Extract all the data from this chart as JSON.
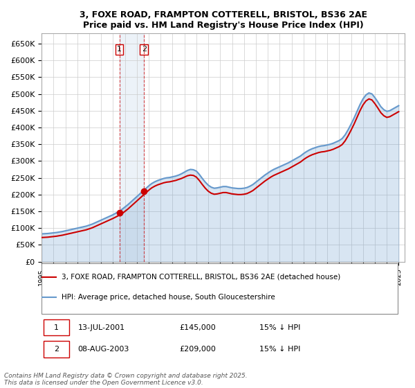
{
  "title": "3, FOXE ROAD, FRAMPTON COTTERELL, BRISTOL, BS36 2AE",
  "subtitle": "Price paid vs. HM Land Registry's House Price Index (HPI)",
  "ylabel": "",
  "xlim_start": 1995,
  "xlim_end": 2025.5,
  "ylim": [
    0,
    680000
  ],
  "yticks": [
    0,
    50000,
    100000,
    150000,
    200000,
    250000,
    300000,
    350000,
    400000,
    450000,
    500000,
    550000,
    600000,
    650000
  ],
  "ytick_labels": [
    "£0",
    "£50K",
    "£100K",
    "£150K",
    "£200K",
    "£250K",
    "£300K",
    "£350K",
    "£400K",
    "£450K",
    "£500K",
    "£550K",
    "£600K",
    "£650K"
  ],
  "xticks": [
    1995,
    1996,
    1997,
    1998,
    1999,
    2000,
    2001,
    2002,
    2003,
    2004,
    2005,
    2006,
    2007,
    2008,
    2009,
    2010,
    2011,
    2012,
    2013,
    2014,
    2015,
    2016,
    2017,
    2018,
    2019,
    2020,
    2021,
    2022,
    2023,
    2024,
    2025
  ],
  "sale1_x": 2001.53,
  "sale1_y": 145000,
  "sale1_label": "1",
  "sale2_x": 2003.6,
  "sale2_y": 209000,
  "sale2_label": "2",
  "sale_color": "#cc0000",
  "hpi_color": "#6699cc",
  "vline_color": "#cc0000",
  "grid_color": "#cccccc",
  "background_color": "#ffffff",
  "legend_label_red": "3, FOXE ROAD, FRAMPTON COTTERELL, BRISTOL, BS36 2AE (detached house)",
  "legend_label_blue": "HPI: Average price, detached house, South Gloucestershire",
  "annotation1": "1    13-JUL-2001    £145,000    15% ↓ HPI",
  "annotation2": "2    08-AUG-2003    £209,000    15% ↓ HPI",
  "footnote": "Contains HM Land Registry data © Crown copyright and database right 2025.\nThis data is licensed under the Open Government Licence v3.0.",
  "hpi_data_x": [
    1995,
    1995.25,
    1995.5,
    1995.75,
    1996,
    1996.25,
    1996.5,
    1996.75,
    1997,
    1997.25,
    1997.5,
    1997.75,
    1998,
    1998.25,
    1998.5,
    1998.75,
    1999,
    1999.25,
    1999.5,
    1999.75,
    2000,
    2000.25,
    2000.5,
    2000.75,
    2001,
    2001.25,
    2001.5,
    2001.75,
    2002,
    2002.25,
    2002.5,
    2002.75,
    2003,
    2003.25,
    2003.5,
    2003.75,
    2004,
    2004.25,
    2004.5,
    2004.75,
    2005,
    2005.25,
    2005.5,
    2005.75,
    2006,
    2006.25,
    2006.5,
    2006.75,
    2007,
    2007.25,
    2007.5,
    2007.75,
    2008,
    2008.25,
    2008.5,
    2008.75,
    2009,
    2009.25,
    2009.5,
    2009.75,
    2010,
    2010.25,
    2010.5,
    2010.75,
    2011,
    2011.25,
    2011.5,
    2011.75,
    2012,
    2012.25,
    2012.5,
    2012.75,
    2013,
    2013.25,
    2013.5,
    2013.75,
    2014,
    2014.25,
    2014.5,
    2014.75,
    2015,
    2015.25,
    2015.5,
    2015.75,
    2016,
    2016.25,
    2016.5,
    2016.75,
    2017,
    2017.25,
    2017.5,
    2017.75,
    2018,
    2018.25,
    2018.5,
    2018.75,
    2019,
    2019.25,
    2019.5,
    2019.75,
    2020,
    2020.25,
    2020.5,
    2020.75,
    2021,
    2021.25,
    2021.5,
    2021.75,
    2022,
    2022.25,
    2022.5,
    2022.75,
    2023,
    2023.25,
    2023.5,
    2023.75,
    2024,
    2024.25,
    2024.5,
    2024.75,
    2025
  ],
  "hpi_data_y": [
    83000,
    83500,
    84000,
    85000,
    86000,
    87000,
    88500,
    90000,
    92000,
    94000,
    96000,
    98000,
    100000,
    102000,
    104000,
    106000,
    109000,
    112000,
    116000,
    120000,
    124000,
    128000,
    132000,
    136000,
    140000,
    145000,
    150000,
    156000,
    163000,
    170000,
    178000,
    186000,
    194000,
    202000,
    210000,
    218000,
    226000,
    233000,
    238000,
    242000,
    245000,
    248000,
    250000,
    251000,
    253000,
    255000,
    258000,
    262000,
    267000,
    272000,
    275000,
    274000,
    270000,
    260000,
    248000,
    237000,
    228000,
    222000,
    219000,
    220000,
    222000,
    224000,
    224000,
    222000,
    220000,
    219000,
    218000,
    218000,
    219000,
    221000,
    225000,
    230000,
    237000,
    244000,
    251000,
    258000,
    264000,
    270000,
    275000,
    279000,
    283000,
    287000,
    291000,
    295000,
    300000,
    305000,
    310000,
    315000,
    322000,
    328000,
    333000,
    337000,
    340000,
    343000,
    345000,
    346000,
    348000,
    350000,
    353000,
    357000,
    361000,
    367000,
    378000,
    393000,
    410000,
    428000,
    448000,
    468000,
    485000,
    497000,
    503000,
    500000,
    489000,
    476000,
    462000,
    453000,
    448000,
    450000,
    455000,
    460000,
    465000
  ],
  "price_data_x": [
    1995,
    1995.25,
    1995.5,
    1995.75,
    1996,
    1996.25,
    1996.5,
    1996.75,
    1997,
    1997.25,
    1997.5,
    1997.75,
    1998,
    1998.25,
    1998.5,
    1998.75,
    1999,
    1999.25,
    1999.5,
    1999.75,
    2000,
    2000.25,
    2000.5,
    2000.75,
    2001,
    2001.25,
    2001.5,
    2001.75,
    2002,
    2002.25,
    2002.5,
    2002.75,
    2003,
    2003.25,
    2003.5,
    2003.75,
    2004,
    2004.25,
    2004.5,
    2004.75,
    2005,
    2005.25,
    2005.5,
    2005.75,
    2006,
    2006.25,
    2006.5,
    2006.75,
    2007,
    2007.25,
    2007.5,
    2007.75,
    2008,
    2008.25,
    2008.5,
    2008.75,
    2009,
    2009.25,
    2009.5,
    2009.75,
    2010,
    2010.25,
    2010.5,
    2010.75,
    2011,
    2011.25,
    2011.5,
    2011.75,
    2012,
    2012.25,
    2012.5,
    2012.75,
    2013,
    2013.25,
    2013.5,
    2013.75,
    2014,
    2014.25,
    2014.5,
    2014.75,
    2015,
    2015.25,
    2015.5,
    2015.75,
    2016,
    2016.25,
    2016.5,
    2016.75,
    2017,
    2017.25,
    2017.5,
    2017.75,
    2018,
    2018.25,
    2018.5,
    2018.75,
    2019,
    2019.25,
    2019.5,
    2019.75,
    2020,
    2020.25,
    2020.5,
    2020.75,
    2021,
    2021.25,
    2021.5,
    2021.75,
    2022,
    2022.25,
    2022.5,
    2022.75,
    2023,
    2023.25,
    2023.5,
    2023.75,
    2024,
    2024.25,
    2024.5,
    2024.75,
    2025
  ],
  "price_data_y": [
    72000,
    72500,
    73000,
    74000,
    75000,
    76000,
    77500,
    79000,
    81000,
    83000,
    85000,
    87000,
    89000,
    91000,
    93000,
    95000,
    98000,
    101000,
    105000,
    109000,
    113000,
    117000,
    121000,
    125000,
    129000,
    133500,
    138000,
    143000,
    150000,
    157000,
    165000,
    173000,
    181000,
    189000,
    197000,
    205000,
    213000,
    220000,
    225000,
    229000,
    232000,
    235000,
    237000,
    238000,
    240000,
    242000,
    245000,
    248000,
    252000,
    256000,
    258000,
    257000,
    252000,
    242000,
    230000,
    219000,
    210000,
    204000,
    201000,
    202000,
    204000,
    206000,
    206000,
    204000,
    202000,
    201000,
    200000,
    200000,
    201000,
    203000,
    207000,
    212000,
    219000,
    226000,
    233000,
    240000,
    246000,
    252000,
    257000,
    261000,
    265000,
    269000,
    273000,
    277000,
    282000,
    287000,
    292000,
    297000,
    304000,
    310000,
    315000,
    319000,
    322000,
    325000,
    327000,
    328000,
    330000,
    332000,
    335000,
    339000,
    343000,
    349000,
    360000,
    375000,
    392000,
    410000,
    430000,
    450000,
    467000,
    479000,
    485000,
    482000,
    471000,
    458000,
    444000,
    435000,
    430000,
    432000,
    437000,
    442000,
    447000
  ]
}
